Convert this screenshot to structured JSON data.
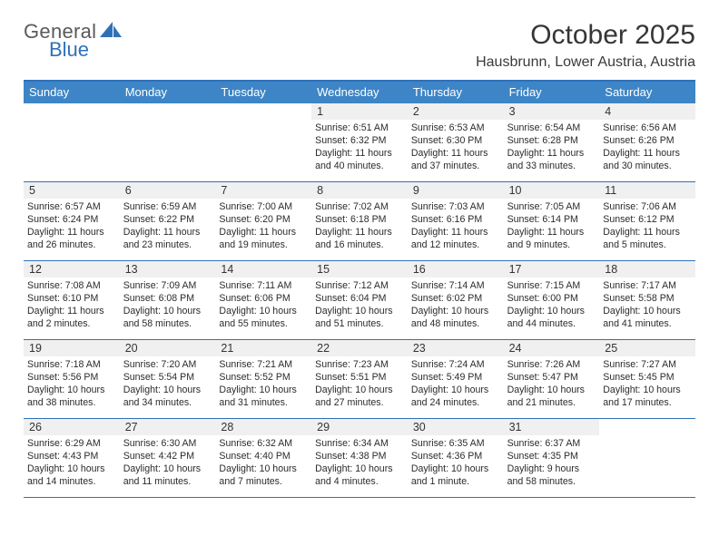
{
  "logo": {
    "text1": "General",
    "text2": "Blue"
  },
  "title": "October 2025",
  "location": "Hausbrunn, Lower Austria, Austria",
  "colors": {
    "header_bar": "#3d85c6",
    "rule": "#2f71b8",
    "day_bg": "#f0f0f0",
    "logo_gray": "#5a5a5a",
    "logo_blue": "#2f71b8"
  },
  "weekdays": [
    "Sunday",
    "Monday",
    "Tuesday",
    "Wednesday",
    "Thursday",
    "Friday",
    "Saturday"
  ],
  "weeks": [
    [
      {},
      {},
      {},
      {
        "n": "1",
        "sr": "Sunrise: 6:51 AM",
        "ss": "Sunset: 6:32 PM",
        "dl1": "Daylight: 11 hours",
        "dl2": "and 40 minutes."
      },
      {
        "n": "2",
        "sr": "Sunrise: 6:53 AM",
        "ss": "Sunset: 6:30 PM",
        "dl1": "Daylight: 11 hours",
        "dl2": "and 37 minutes."
      },
      {
        "n": "3",
        "sr": "Sunrise: 6:54 AM",
        "ss": "Sunset: 6:28 PM",
        "dl1": "Daylight: 11 hours",
        "dl2": "and 33 minutes."
      },
      {
        "n": "4",
        "sr": "Sunrise: 6:56 AM",
        "ss": "Sunset: 6:26 PM",
        "dl1": "Daylight: 11 hours",
        "dl2": "and 30 minutes."
      }
    ],
    [
      {
        "n": "5",
        "sr": "Sunrise: 6:57 AM",
        "ss": "Sunset: 6:24 PM",
        "dl1": "Daylight: 11 hours",
        "dl2": "and 26 minutes."
      },
      {
        "n": "6",
        "sr": "Sunrise: 6:59 AM",
        "ss": "Sunset: 6:22 PM",
        "dl1": "Daylight: 11 hours",
        "dl2": "and 23 minutes."
      },
      {
        "n": "7",
        "sr": "Sunrise: 7:00 AM",
        "ss": "Sunset: 6:20 PM",
        "dl1": "Daylight: 11 hours",
        "dl2": "and 19 minutes."
      },
      {
        "n": "8",
        "sr": "Sunrise: 7:02 AM",
        "ss": "Sunset: 6:18 PM",
        "dl1": "Daylight: 11 hours",
        "dl2": "and 16 minutes."
      },
      {
        "n": "9",
        "sr": "Sunrise: 7:03 AM",
        "ss": "Sunset: 6:16 PM",
        "dl1": "Daylight: 11 hours",
        "dl2": "and 12 minutes."
      },
      {
        "n": "10",
        "sr": "Sunrise: 7:05 AM",
        "ss": "Sunset: 6:14 PM",
        "dl1": "Daylight: 11 hours",
        "dl2": "and 9 minutes."
      },
      {
        "n": "11",
        "sr": "Sunrise: 7:06 AM",
        "ss": "Sunset: 6:12 PM",
        "dl1": "Daylight: 11 hours",
        "dl2": "and 5 minutes."
      }
    ],
    [
      {
        "n": "12",
        "sr": "Sunrise: 7:08 AM",
        "ss": "Sunset: 6:10 PM",
        "dl1": "Daylight: 11 hours",
        "dl2": "and 2 minutes."
      },
      {
        "n": "13",
        "sr": "Sunrise: 7:09 AM",
        "ss": "Sunset: 6:08 PM",
        "dl1": "Daylight: 10 hours",
        "dl2": "and 58 minutes."
      },
      {
        "n": "14",
        "sr": "Sunrise: 7:11 AM",
        "ss": "Sunset: 6:06 PM",
        "dl1": "Daylight: 10 hours",
        "dl2": "and 55 minutes."
      },
      {
        "n": "15",
        "sr": "Sunrise: 7:12 AM",
        "ss": "Sunset: 6:04 PM",
        "dl1": "Daylight: 10 hours",
        "dl2": "and 51 minutes."
      },
      {
        "n": "16",
        "sr": "Sunrise: 7:14 AM",
        "ss": "Sunset: 6:02 PM",
        "dl1": "Daylight: 10 hours",
        "dl2": "and 48 minutes."
      },
      {
        "n": "17",
        "sr": "Sunrise: 7:15 AM",
        "ss": "Sunset: 6:00 PM",
        "dl1": "Daylight: 10 hours",
        "dl2": "and 44 minutes."
      },
      {
        "n": "18",
        "sr": "Sunrise: 7:17 AM",
        "ss": "Sunset: 5:58 PM",
        "dl1": "Daylight: 10 hours",
        "dl2": "and 41 minutes."
      }
    ],
    [
      {
        "n": "19",
        "sr": "Sunrise: 7:18 AM",
        "ss": "Sunset: 5:56 PM",
        "dl1": "Daylight: 10 hours",
        "dl2": "and 38 minutes."
      },
      {
        "n": "20",
        "sr": "Sunrise: 7:20 AM",
        "ss": "Sunset: 5:54 PM",
        "dl1": "Daylight: 10 hours",
        "dl2": "and 34 minutes."
      },
      {
        "n": "21",
        "sr": "Sunrise: 7:21 AM",
        "ss": "Sunset: 5:52 PM",
        "dl1": "Daylight: 10 hours",
        "dl2": "and 31 minutes."
      },
      {
        "n": "22",
        "sr": "Sunrise: 7:23 AM",
        "ss": "Sunset: 5:51 PM",
        "dl1": "Daylight: 10 hours",
        "dl2": "and 27 minutes."
      },
      {
        "n": "23",
        "sr": "Sunrise: 7:24 AM",
        "ss": "Sunset: 5:49 PM",
        "dl1": "Daylight: 10 hours",
        "dl2": "and 24 minutes."
      },
      {
        "n": "24",
        "sr": "Sunrise: 7:26 AM",
        "ss": "Sunset: 5:47 PM",
        "dl1": "Daylight: 10 hours",
        "dl2": "and 21 minutes."
      },
      {
        "n": "25",
        "sr": "Sunrise: 7:27 AM",
        "ss": "Sunset: 5:45 PM",
        "dl1": "Daylight: 10 hours",
        "dl2": "and 17 minutes."
      }
    ],
    [
      {
        "n": "26",
        "sr": "Sunrise: 6:29 AM",
        "ss": "Sunset: 4:43 PM",
        "dl1": "Daylight: 10 hours",
        "dl2": "and 14 minutes."
      },
      {
        "n": "27",
        "sr": "Sunrise: 6:30 AM",
        "ss": "Sunset: 4:42 PM",
        "dl1": "Daylight: 10 hours",
        "dl2": "and 11 minutes."
      },
      {
        "n": "28",
        "sr": "Sunrise: 6:32 AM",
        "ss": "Sunset: 4:40 PM",
        "dl1": "Daylight: 10 hours",
        "dl2": "and 7 minutes."
      },
      {
        "n": "29",
        "sr": "Sunrise: 6:34 AM",
        "ss": "Sunset: 4:38 PM",
        "dl1": "Daylight: 10 hours",
        "dl2": "and 4 minutes."
      },
      {
        "n": "30",
        "sr": "Sunrise: 6:35 AM",
        "ss": "Sunset: 4:36 PM",
        "dl1": "Daylight: 10 hours",
        "dl2": "and 1 minute."
      },
      {
        "n": "31",
        "sr": "Sunrise: 6:37 AM",
        "ss": "Sunset: 4:35 PM",
        "dl1": "Daylight: 9 hours",
        "dl2": "and 58 minutes."
      },
      {}
    ]
  ]
}
